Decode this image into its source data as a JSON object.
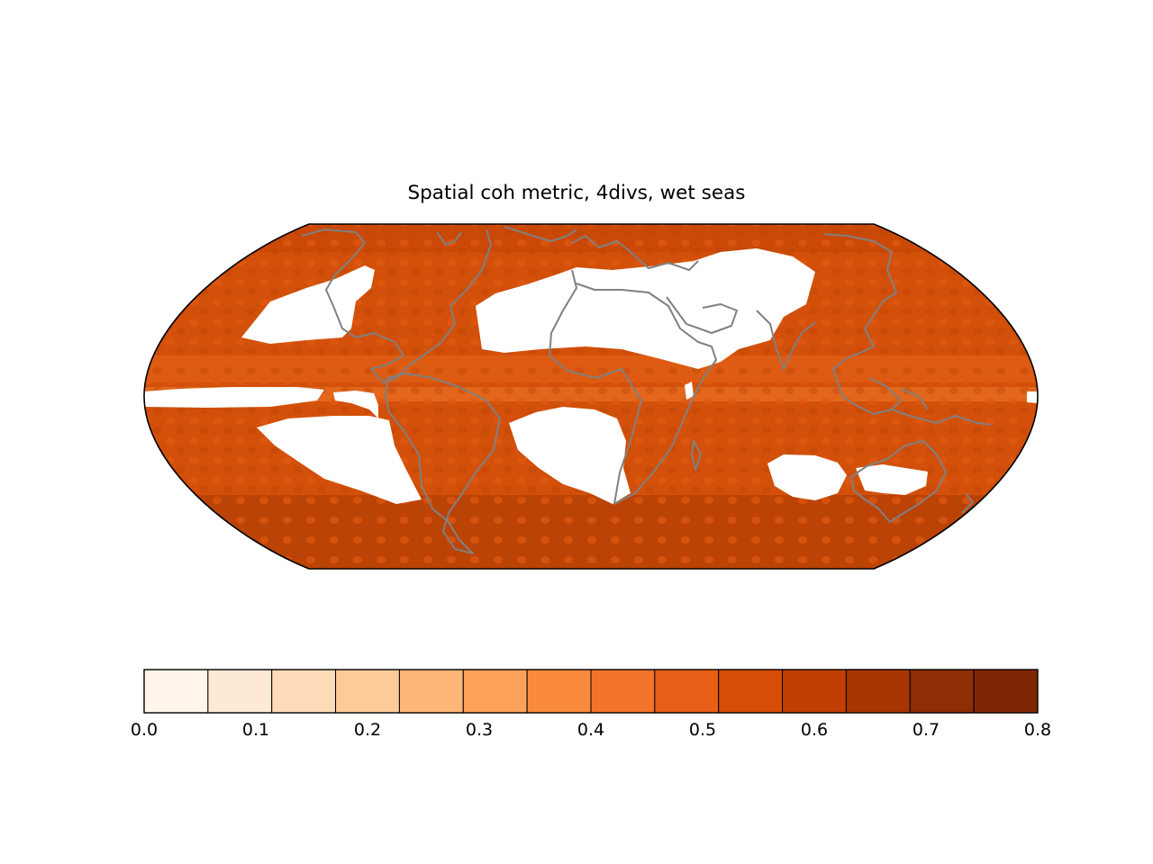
{
  "title": "Spatial coh metric, 4divs, wet seas",
  "map": {
    "projection": "robinson-like",
    "field_description": "spatial coherence metric over wet seasons",
    "dominant_range": [
      0.55,
      0.7
    ],
    "masked_color": "#ffffff",
    "coastline_color": "#808080"
  },
  "colorbar": {
    "vmin": 0.0,
    "vmax": 0.8,
    "step": 0.05,
    "colors": [
      "#fff5eb",
      "#fee9d4",
      "#fddbb8",
      "#fdca99",
      "#fdb678",
      "#fda25a",
      "#fa8b3d",
      "#f3732a",
      "#e75e16",
      "#d74c06",
      "#c03f02",
      "#a63603",
      "#8f2d04",
      "#7f2704"
    ],
    "tick_labels": [
      "0.0",
      "0.1",
      "0.2",
      "0.3",
      "0.4",
      "0.5",
      "0.6",
      "0.7",
      "0.8"
    ]
  }
}
